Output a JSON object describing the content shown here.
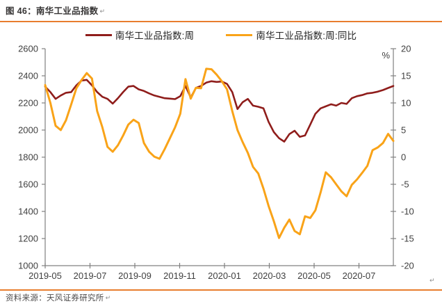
{
  "title": "图 46：南华工业品指数",
  "marks": {
    "return": "↵"
  },
  "source": "资料来源：天风证券研究所",
  "colors": {
    "index_line": "#8f1d1b",
    "yoy_line": "#f9a318",
    "divider": "#e87d2e",
    "axis_line": "#808080",
    "axis_text": "#3f3f3f"
  },
  "chart_data": {
    "type": "line",
    "title": "南华工业品指数",
    "grid": false,
    "legend_position": "top",
    "x_ticks": [
      "2019-05",
      "2019-07",
      "2019-09",
      "2019-11",
      "2020-01",
      "2020-03",
      "2020-05",
      "2020-07"
    ],
    "left_axis": {
      "min": 1000,
      "max": 2600,
      "ticks": [
        1000,
        1200,
        1400,
        1600,
        1800,
        2000,
        2200,
        2400,
        2600
      ]
    },
    "right_axis": {
      "min": -20,
      "max": 20,
      "ticks": [
        -20,
        -15,
        -10,
        -5,
        0,
        5,
        10,
        15,
        20
      ],
      "unit": "%"
    },
    "x": [
      "2019-05-03",
      "2019-05-10",
      "2019-05-17",
      "2019-05-24",
      "2019-05-31",
      "2019-06-07",
      "2019-06-14",
      "2019-06-21",
      "2019-06-28",
      "2019-07-05",
      "2019-07-12",
      "2019-07-19",
      "2019-07-26",
      "2019-08-02",
      "2019-08-09",
      "2019-08-16",
      "2019-08-23",
      "2019-08-30",
      "2019-09-06",
      "2019-09-13",
      "2019-09-20",
      "2019-09-27",
      "2019-10-04",
      "2019-10-11",
      "2019-10-18",
      "2019-10-25",
      "2019-11-01",
      "2019-11-08",
      "2019-11-15",
      "2019-11-22",
      "2019-11-29",
      "2019-12-06",
      "2019-12-13",
      "2019-12-20",
      "2019-12-27",
      "2020-01-03",
      "2020-01-10",
      "2020-01-17",
      "2020-01-24",
      "2020-01-31",
      "2020-02-07",
      "2020-02-14",
      "2020-02-21",
      "2020-02-28",
      "2020-03-06",
      "2020-03-13",
      "2020-03-20",
      "2020-03-27",
      "2020-04-03",
      "2020-04-10",
      "2020-04-17",
      "2020-04-24",
      "2020-05-01",
      "2020-05-08",
      "2020-05-15",
      "2020-05-22",
      "2020-05-29",
      "2020-06-05",
      "2020-06-12",
      "2020-06-19",
      "2020-06-26",
      "2020-07-03",
      "2020-07-10",
      "2020-07-17",
      "2020-07-24",
      "2020-07-31",
      "2020-08-07",
      "2020-08-14"
    ],
    "series": [
      {
        "name": "南华工业品指数:周",
        "axis": "left",
        "color": "#8f1d1b",
        "values": [
          2320,
          2280,
          2230,
          2255,
          2275,
          2280,
          2330,
          2365,
          2370,
          2330,
          2280,
          2245,
          2230,
          2195,
          2235,
          2280,
          2320,
          2325,
          2300,
          2288,
          2270,
          2255,
          2245,
          2235,
          2232,
          2228,
          2250,
          2325,
          2240,
          2310,
          2325,
          2350,
          2360,
          2355,
          2358,
          2340,
          2280,
          2155,
          2205,
          2230,
          2180,
          2172,
          2160,
          2060,
          1985,
          1940,
          1915,
          1970,
          1995,
          1950,
          1960,
          2040,
          2120,
          2160,
          2175,
          2190,
          2180,
          2200,
          2193,
          2235,
          2250,
          2258,
          2270,
          2275,
          2283,
          2295,
          2310,
          2325
        ]
      },
      {
        "name": "南华工业品指数:周:同比",
        "axis": "right",
        "color": "#f9a318",
        "values": [
          13.3,
          10.0,
          5.8,
          5.0,
          6.8,
          9.7,
          12.7,
          14.2,
          15.5,
          14.5,
          8.5,
          5.5,
          1.9,
          1.0,
          2.2,
          4.0,
          6.0,
          6.9,
          6.3,
          2.6,
          1.0,
          0.1,
          -0.3,
          1.5,
          3.5,
          5.5,
          8.0,
          14.4,
          10.8,
          12.8,
          12.7,
          16.3,
          16.2,
          15.2,
          14.0,
          12.5,
          8.5,
          5.0,
          2.8,
          0.8,
          -1.8,
          -3.0,
          -5.8,
          -9.0,
          -11.8,
          -14.9,
          -13.0,
          -11.5,
          -13.6,
          -14.2,
          -10.9,
          -11.2,
          -9.8,
          -6.5,
          -2.8,
          -3.7,
          -5.0,
          -6.3,
          -7.2,
          -5.1,
          -4.1,
          -2.9,
          -1.6,
          1.3,
          1.8,
          2.6,
          4.3,
          3.0
        ]
      }
    ]
  }
}
